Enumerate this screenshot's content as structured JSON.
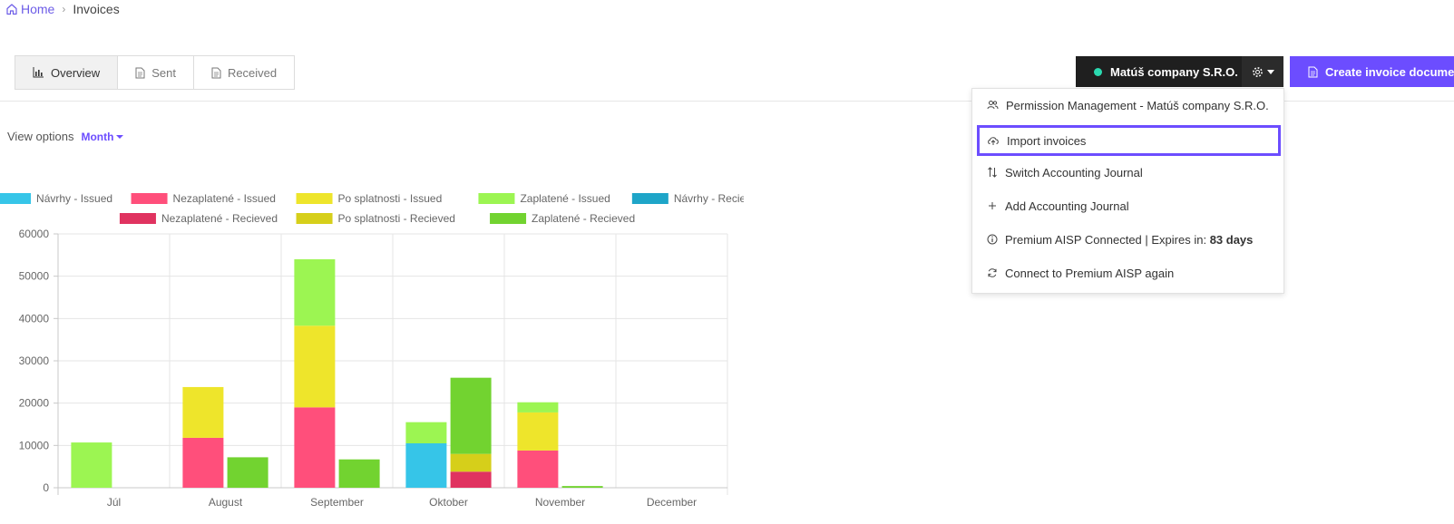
{
  "breadcrumb": {
    "home": "Home",
    "current": "Invoices"
  },
  "tabs": [
    {
      "label": "Overview",
      "active": true,
      "icon": "bar-chart-icon"
    },
    {
      "label": "Sent",
      "active": false,
      "icon": "document-icon"
    },
    {
      "label": "Received",
      "active": false,
      "icon": "document-icon"
    }
  ],
  "company": {
    "name": "Matúš company S.R.O.",
    "status_color": "#2bd9b0"
  },
  "create_button": {
    "label": "Create invoice document"
  },
  "dropdown": {
    "items": [
      {
        "label": "Permission Management - Matúš company S.R.O.",
        "icon": "users-icon"
      },
      {
        "label": "Import invoices",
        "icon": "cloud-upload-icon",
        "highlighted": true
      },
      {
        "label": "Switch Accounting Journal",
        "icon": "swap-icon"
      },
      {
        "label": "Add Accounting Journal",
        "icon": "plus-icon"
      },
      {
        "label_prefix": "Premium AISP Connected | Expires in: ",
        "label_bold": "83 days",
        "icon": "info-icon"
      },
      {
        "label": "Connect to Premium AISP again",
        "icon": "refresh-icon"
      }
    ]
  },
  "view_options": {
    "label": "View options",
    "value": "Month"
  },
  "colors": {
    "accent": "#6c4dff",
    "link": "#6c5ce7"
  },
  "chart_data": {
    "type": "bar",
    "stacked": true,
    "categories": [
      "Júl",
      "August",
      "September",
      "Oktober",
      "November",
      "December"
    ],
    "ylim": [
      0,
      60000
    ],
    "yticks": [
      0,
      10000,
      20000,
      30000,
      40000,
      50000,
      60000
    ],
    "grid": true,
    "legend_position": "top",
    "series": [
      {
        "name": "Návrhy - Issued",
        "stack": "issued",
        "color": "#36c5e8",
        "values": [
          0,
          0,
          0,
          10500,
          0,
          0
        ]
      },
      {
        "name": "Nezaplatené - Issued",
        "stack": "issued",
        "color": "#ff4f7b",
        "values": [
          0,
          11800,
          19000,
          0,
          8800,
          0
        ]
      },
      {
        "name": "Po splatnosti  - Issued",
        "stack": "issued",
        "color": "#eee52b",
        "values": [
          0,
          12000,
          19300,
          0,
          9000,
          0
        ]
      },
      {
        "name": "Zaplatené - Issued",
        "stack": "issued",
        "color": "#9cf552",
        "values": [
          10700,
          0,
          15700,
          5000,
          2400,
          0
        ]
      },
      {
        "name": "Návrhy - Recieved",
        "stack": "received",
        "color": "#1ea5c8",
        "values": [
          0,
          0,
          0,
          0,
          0,
          0
        ]
      },
      {
        "name": "Nezaplatené - Recieved",
        "stack": "received",
        "color": "#e03360",
        "values": [
          0,
          0,
          0,
          3800,
          0,
          0
        ]
      },
      {
        "name": "Po splatnosti  - Recieved",
        "stack": "received",
        "color": "#d6cf1a",
        "values": [
          0,
          0,
          0,
          4200,
          0,
          0
        ]
      },
      {
        "name": "Zaplatené - Recieved",
        "stack": "received",
        "color": "#72d330",
        "values": [
          0,
          7200,
          6700,
          18000,
          400,
          0
        ]
      }
    ]
  }
}
